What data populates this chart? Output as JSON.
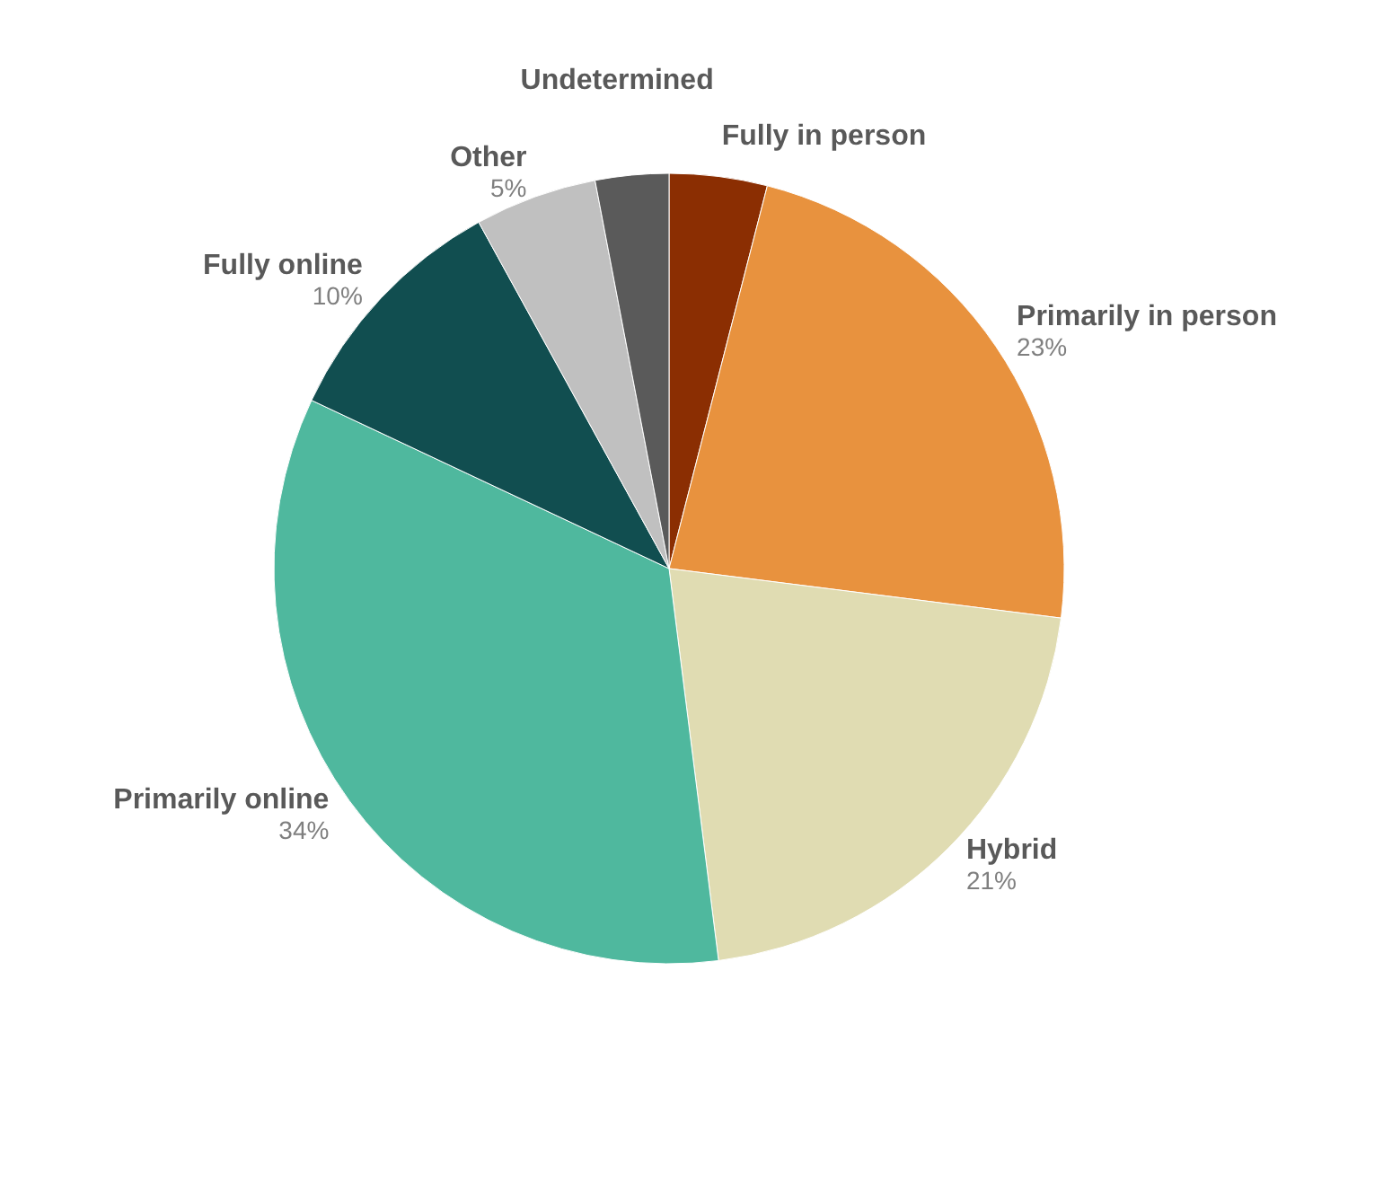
{
  "chart_data": {
    "type": "pie",
    "categories": [
      "Fully in person",
      "Primarily in person",
      "Hybrid",
      "Primarily online",
      "Fully online",
      "Other",
      "Undetermined"
    ],
    "values": [
      4,
      23,
      21,
      34,
      10,
      5,
      3
    ],
    "value_labels": [
      null,
      "23%",
      "21%",
      "34%",
      "10%",
      "5%",
      null
    ],
    "colors": [
      "#8b2e02",
      "#e8923e",
      "#e0dcb2",
      "#4fb89e",
      "#114e50",
      "#c0c0c0",
      "#5a5a5a"
    ]
  }
}
